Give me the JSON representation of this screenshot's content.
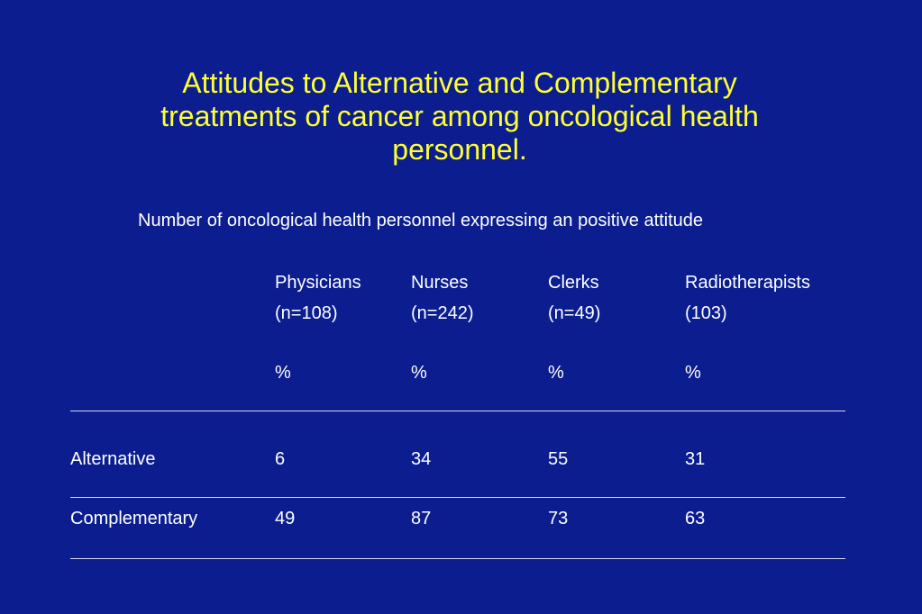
{
  "slide": {
    "title_lines": [
      "Attitudes to Alternative and Complementary",
      "treatments of cancer among oncological health",
      "personnel."
    ],
    "subtitle": "Number of oncological health personnel expressing an positive attitude"
  },
  "table": {
    "columns": [
      {
        "name": "Physicians",
        "n": "(n=108)",
        "unit": "%"
      },
      {
        "name": "Nurses",
        "n": "(n=242)",
        "unit": "%"
      },
      {
        "name": "Clerks",
        "n": "(n=49)",
        "unit": "%"
      },
      {
        "name": "Radiotherapists",
        "n": "(103)",
        "unit": "%"
      }
    ],
    "rows": [
      {
        "label": "Alternative",
        "values": [
          "6",
          "34",
          "55",
          "31"
        ]
      },
      {
        "label": "Complementary",
        "values": [
          "49",
          "87",
          "73",
          "63"
        ]
      }
    ]
  },
  "colors": {
    "background": "#0b1d8f",
    "title": "#ffff33",
    "text": "#ffffff"
  }
}
